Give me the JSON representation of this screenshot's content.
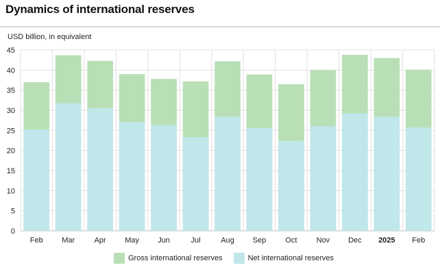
{
  "title": "Dynamics of international reserves",
  "unit_label": "USD billion, in equivalent",
  "colors": {
    "gross": "#b9dfb6",
    "net": "#c0e7e9",
    "grid": "#e0e0e0",
    "axis": "#bdbdbd"
  },
  "chart_data": {
    "type": "bar",
    "stacked": false,
    "overlapping": true,
    "categories": [
      "Feb",
      "Mar",
      "Apr",
      "May",
      "Jun",
      "Jul",
      "Aug",
      "Sep",
      "Oct",
      "Nov",
      "Dec",
      "2025",
      "Feb"
    ],
    "bold_categories": [
      "2025"
    ],
    "series": [
      {
        "name": "Gross international reserves",
        "values": [
          37.0,
          43.7,
          42.3,
          39.0,
          37.8,
          37.2,
          42.2,
          38.9,
          36.5,
          40.0,
          43.8,
          43.0,
          40.1
        ]
      },
      {
        "name": "Net international reserves",
        "values": [
          25.2,
          31.8,
          30.5,
          27.1,
          26.3,
          23.3,
          28.4,
          25.6,
          22.4,
          26.0,
          29.2,
          28.4,
          25.7
        ]
      }
    ],
    "ylim": [
      0,
      45
    ],
    "yticks": [
      0,
      5,
      10,
      15,
      20,
      25,
      30,
      35,
      40,
      45
    ],
    "grid": true,
    "legend_position": "bottom"
  }
}
